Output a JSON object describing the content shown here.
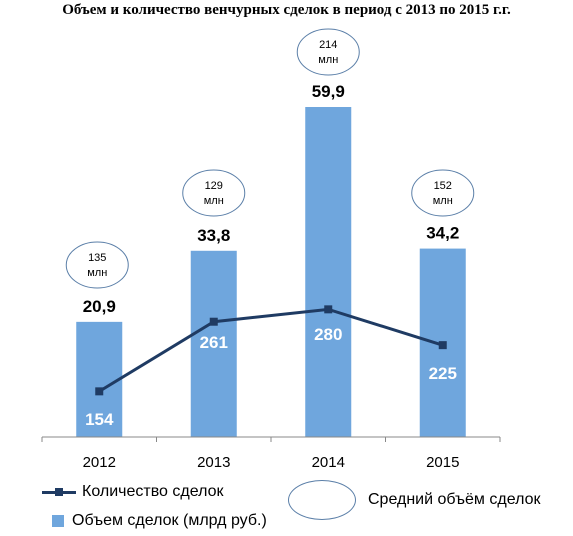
{
  "title": "Объем и количество венчурных сделок в период с 2013 по 2015 г.г.",
  "legend": {
    "count": "Количество сделок",
    "volume": "Объем сделок (млрд руб.)",
    "avg": "Средний объём сделок"
  },
  "colors": {
    "bar": "#6fa6dd",
    "line": "#1f3b63",
    "ellipse": "#5b7fa8"
  },
  "chart_data": {
    "type": "bar",
    "categories": [
      "2012",
      "2013",
      "2014",
      "2015"
    ],
    "series": [
      {
        "name": "Объем сделок (млрд руб.)",
        "type": "bar",
        "values": [
          20.9,
          33.8,
          59.9,
          34.2
        ],
        "labels": [
          "20,9",
          "33,8",
          "59,9",
          "34,2"
        ]
      },
      {
        "name": "Количество сделок",
        "type": "line",
        "values": [
          154,
          261,
          280,
          225
        ],
        "labels": [
          "154",
          "261",
          "280",
          "225"
        ]
      }
    ],
    "annotations": [
      {
        "category": "2012",
        "text": [
          "135",
          "млн"
        ]
      },
      {
        "category": "2013",
        "text": [
          "129",
          "млн"
        ]
      },
      {
        "category": "2014",
        "text": [
          "214",
          "млн"
        ]
      },
      {
        "category": "2015",
        "text": [
          "152",
          "млн"
        ]
      }
    ],
    "legend_position": "bottom",
    "grid": false
  }
}
